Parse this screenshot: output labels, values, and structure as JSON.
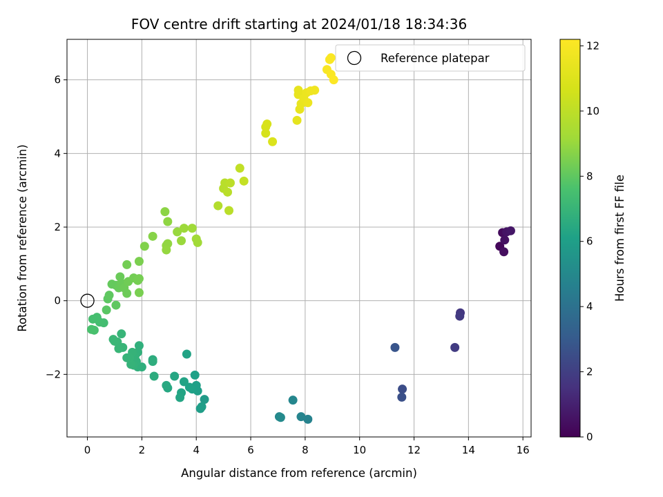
{
  "chart_data": {
    "type": "scatter",
    "title": "FOV centre drift starting at 2024/01/18 18:34:36",
    "xlabel": "Angular distance from reference (arcmin)",
    "ylabel": "Rotation from reference (arcmin)",
    "xlim": [
      -0.75,
      16.3
    ],
    "ylim": [
      -3.7,
      7.1
    ],
    "xticks": [
      0,
      2,
      4,
      6,
      8,
      10,
      12,
      14,
      16
    ],
    "xtick_labels": [
      "0",
      "2",
      "4",
      "6",
      "8",
      "10",
      "12",
      "14",
      "16"
    ],
    "yticks": [
      -2,
      0,
      2,
      4,
      6
    ],
    "ytick_labels": [
      "−2",
      "0",
      "2",
      "4",
      "6"
    ],
    "grid": true,
    "legend": {
      "placement": "top-right",
      "entries": [
        "Reference platepar"
      ]
    },
    "reference_point": {
      "name": "Reference platepar",
      "x": 0,
      "y": 0
    },
    "colorbar": {
      "label": "Hours from first FF file",
      "colormap": "viridis",
      "range": [
        0,
        12.2
      ],
      "ticks": [
        0,
        2,
        4,
        6,
        8,
        10,
        12
      ],
      "tick_labels": [
        "0",
        "2",
        "4",
        "6",
        "8",
        "10",
        "12"
      ]
    },
    "points": [
      {
        "x": 15.15,
        "y": 1.48,
        "h": 0.2
      },
      {
        "x": 15.25,
        "y": 1.85,
        "h": 0.3
      },
      {
        "x": 15.3,
        "y": 1.33,
        "h": 0.4
      },
      {
        "x": 15.33,
        "y": 1.65,
        "h": 0.5
      },
      {
        "x": 15.4,
        "y": 1.87,
        "h": 0.6
      },
      {
        "x": 15.55,
        "y": 1.9,
        "h": 0.7
      },
      {
        "x": 13.7,
        "y": -0.33,
        "h": 1.7
      },
      {
        "x": 13.68,
        "y": -0.42,
        "h": 1.8
      },
      {
        "x": 13.5,
        "y": -1.27,
        "h": 1.9
      },
      {
        "x": 11.57,
        "y": -2.4,
        "h": 2.5
      },
      {
        "x": 11.55,
        "y": -2.62,
        "h": 2.6
      },
      {
        "x": 11.3,
        "y": -1.27,
        "h": 2.8
      },
      {
        "x": 8.1,
        "y": -3.22,
        "h": 4.7
      },
      {
        "x": 7.85,
        "y": -3.15,
        "h": 4.8
      },
      {
        "x": 7.55,
        "y": -2.7,
        "h": 4.9
      },
      {
        "x": 7.05,
        "y": -3.15,
        "h": 5.0
      },
      {
        "x": 7.1,
        "y": -3.17,
        "h": 5.05
      },
      {
        "x": 4.3,
        "y": -2.68,
        "h": 5.8
      },
      {
        "x": 4.15,
        "y": -2.93,
        "h": 5.9
      },
      {
        "x": 4.2,
        "y": -2.88,
        "h": 5.95
      },
      {
        "x": 4.05,
        "y": -2.45,
        "h": 6.0
      },
      {
        "x": 4.0,
        "y": -2.3,
        "h": 6.0
      },
      {
        "x": 3.95,
        "y": -2.02,
        "h": 6.1
      },
      {
        "x": 3.85,
        "y": -2.4,
        "h": 6.1
      },
      {
        "x": 3.75,
        "y": -2.35,
        "h": 6.15
      },
      {
        "x": 3.65,
        "y": -1.45,
        "h": 6.2
      },
      {
        "x": 3.55,
        "y": -2.2,
        "h": 6.2
      },
      {
        "x": 3.45,
        "y": -2.5,
        "h": 6.25
      },
      {
        "x": 3.4,
        "y": -2.63,
        "h": 6.3
      },
      {
        "x": 3.2,
        "y": -2.05,
        "h": 6.35
      },
      {
        "x": 2.95,
        "y": -2.37,
        "h": 6.4
      },
      {
        "x": 2.9,
        "y": -2.3,
        "h": 6.45
      },
      {
        "x": 2.45,
        "y": -2.05,
        "h": 6.6
      },
      {
        "x": 2.4,
        "y": -1.6,
        "h": 6.6
      },
      {
        "x": 2.4,
        "y": -1.65,
        "h": 6.65
      },
      {
        "x": 2.0,
        "y": -1.8,
        "h": 6.7
      },
      {
        "x": 1.9,
        "y": -1.22,
        "h": 6.75
      },
      {
        "x": 1.85,
        "y": -1.8,
        "h": 6.75
      },
      {
        "x": 1.85,
        "y": -1.4,
        "h": 6.8
      },
      {
        "x": 1.8,
        "y": -1.65,
        "h": 6.8
      },
      {
        "x": 1.75,
        "y": -1.5,
        "h": 6.85
      },
      {
        "x": 1.7,
        "y": -1.75,
        "h": 6.85
      },
      {
        "x": 1.65,
        "y": -1.4,
        "h": 6.9
      },
      {
        "x": 1.6,
        "y": -1.73,
        "h": 6.9
      },
      {
        "x": 1.55,
        "y": -1.55,
        "h": 6.95
      },
      {
        "x": 1.45,
        "y": -1.55,
        "h": 6.95
      },
      {
        "x": 1.3,
        "y": -1.27,
        "h": 7.0
      },
      {
        "x": 1.25,
        "y": -0.9,
        "h": 7.0
      },
      {
        "x": 1.15,
        "y": -1.3,
        "h": 7.05
      },
      {
        "x": 1.1,
        "y": -1.12,
        "h": 7.05
      },
      {
        "x": 1.0,
        "y": -1.1,
        "h": 7.1
      },
      {
        "x": 0.95,
        "y": -1.05,
        "h": 7.1
      },
      {
        "x": 0.6,
        "y": -0.6,
        "h": 7.4
      },
      {
        "x": 0.45,
        "y": -0.58,
        "h": 7.45
      },
      {
        "x": 0.35,
        "y": -0.45,
        "h": 7.5
      },
      {
        "x": 0.2,
        "y": -0.5,
        "h": 7.5
      },
      {
        "x": 0.25,
        "y": -0.8,
        "h": 7.55
      },
      {
        "x": 0.15,
        "y": -0.78,
        "h": 7.6
      },
      {
        "x": 0.7,
        "y": -0.25,
        "h": 7.9
      },
      {
        "x": 0.75,
        "y": 0.05,
        "h": 7.95
      },
      {
        "x": 0.8,
        "y": 0.15,
        "h": 8.0
      },
      {
        "x": 1.05,
        "y": -0.12,
        "h": 8.0
      },
      {
        "x": 0.9,
        "y": 0.45,
        "h": 8.1
      },
      {
        "x": 1.05,
        "y": 0.42,
        "h": 8.1
      },
      {
        "x": 1.15,
        "y": 0.35,
        "h": 8.15
      },
      {
        "x": 1.2,
        "y": 0.65,
        "h": 8.2
      },
      {
        "x": 1.25,
        "y": 0.48,
        "h": 8.2
      },
      {
        "x": 1.35,
        "y": 0.35,
        "h": 8.25
      },
      {
        "x": 1.45,
        "y": 0.2,
        "h": 8.25
      },
      {
        "x": 1.5,
        "y": 0.52,
        "h": 8.3
      },
      {
        "x": 1.45,
        "y": 0.98,
        "h": 8.35
      },
      {
        "x": 1.7,
        "y": 0.62,
        "h": 8.35
      },
      {
        "x": 1.85,
        "y": 0.55,
        "h": 8.4
      },
      {
        "x": 1.9,
        "y": 0.6,
        "h": 8.4
      },
      {
        "x": 1.9,
        "y": 0.22,
        "h": 8.45
      },
      {
        "x": 1.9,
        "y": 1.07,
        "h": 8.5
      },
      {
        "x": 2.1,
        "y": 1.48,
        "h": 8.6
      },
      {
        "x": 2.4,
        "y": 1.75,
        "h": 8.7
      },
      {
        "x": 2.85,
        "y": 2.42,
        "h": 8.8
      },
      {
        "x": 2.95,
        "y": 2.15,
        "h": 8.85
      },
      {
        "x": 2.95,
        "y": 1.55,
        "h": 8.9
      },
      {
        "x": 2.9,
        "y": 1.5,
        "h": 8.9
      },
      {
        "x": 2.9,
        "y": 1.38,
        "h": 8.95
      },
      {
        "x": 3.3,
        "y": 1.87,
        "h": 9.0
      },
      {
        "x": 3.45,
        "y": 1.63,
        "h": 9.05
      },
      {
        "x": 3.55,
        "y": 1.97,
        "h": 9.1
      },
      {
        "x": 3.85,
        "y": 1.97,
        "h": 9.15
      },
      {
        "x": 4.0,
        "y": 1.68,
        "h": 9.2
      },
      {
        "x": 4.05,
        "y": 1.58,
        "h": 9.2
      },
      {
        "x": 4.8,
        "y": 2.58,
        "h": 9.7
      },
      {
        "x": 5.0,
        "y": 3.05,
        "h": 9.8
      },
      {
        "x": 5.05,
        "y": 3.2,
        "h": 9.85
      },
      {
        "x": 5.15,
        "y": 2.95,
        "h": 9.9
      },
      {
        "x": 5.2,
        "y": 2.45,
        "h": 9.9
      },
      {
        "x": 5.25,
        "y": 3.2,
        "h": 9.95
      },
      {
        "x": 5.6,
        "y": 3.6,
        "h": 10.1
      },
      {
        "x": 5.75,
        "y": 3.25,
        "h": 10.2
      },
      {
        "x": 6.55,
        "y": 4.55,
        "h": 10.7
      },
      {
        "x": 6.55,
        "y": 4.72,
        "h": 10.75
      },
      {
        "x": 6.6,
        "y": 4.8,
        "h": 10.8
      },
      {
        "x": 6.8,
        "y": 4.32,
        "h": 10.9
      },
      {
        "x": 7.7,
        "y": 4.9,
        "h": 11.3
      },
      {
        "x": 7.75,
        "y": 5.72,
        "h": 11.35
      },
      {
        "x": 7.75,
        "y": 5.6,
        "h": 11.4
      },
      {
        "x": 7.8,
        "y": 5.2,
        "h": 11.4
      },
      {
        "x": 7.85,
        "y": 5.35,
        "h": 11.45
      },
      {
        "x": 7.95,
        "y": 5.5,
        "h": 11.5
      },
      {
        "x": 8.05,
        "y": 5.65,
        "h": 11.55
      },
      {
        "x": 8.1,
        "y": 5.38,
        "h": 11.6
      },
      {
        "x": 8.2,
        "y": 5.7,
        "h": 11.65
      },
      {
        "x": 8.35,
        "y": 5.72,
        "h": 11.7
      },
      {
        "x": 8.8,
        "y": 6.28,
        "h": 12.0
      },
      {
        "x": 8.9,
        "y": 6.55,
        "h": 12.05
      },
      {
        "x": 8.95,
        "y": 6.6,
        "h": 12.1
      },
      {
        "x": 8.95,
        "y": 6.15,
        "h": 12.1
      },
      {
        "x": 9.05,
        "y": 6.0,
        "h": 12.15
      }
    ]
  }
}
